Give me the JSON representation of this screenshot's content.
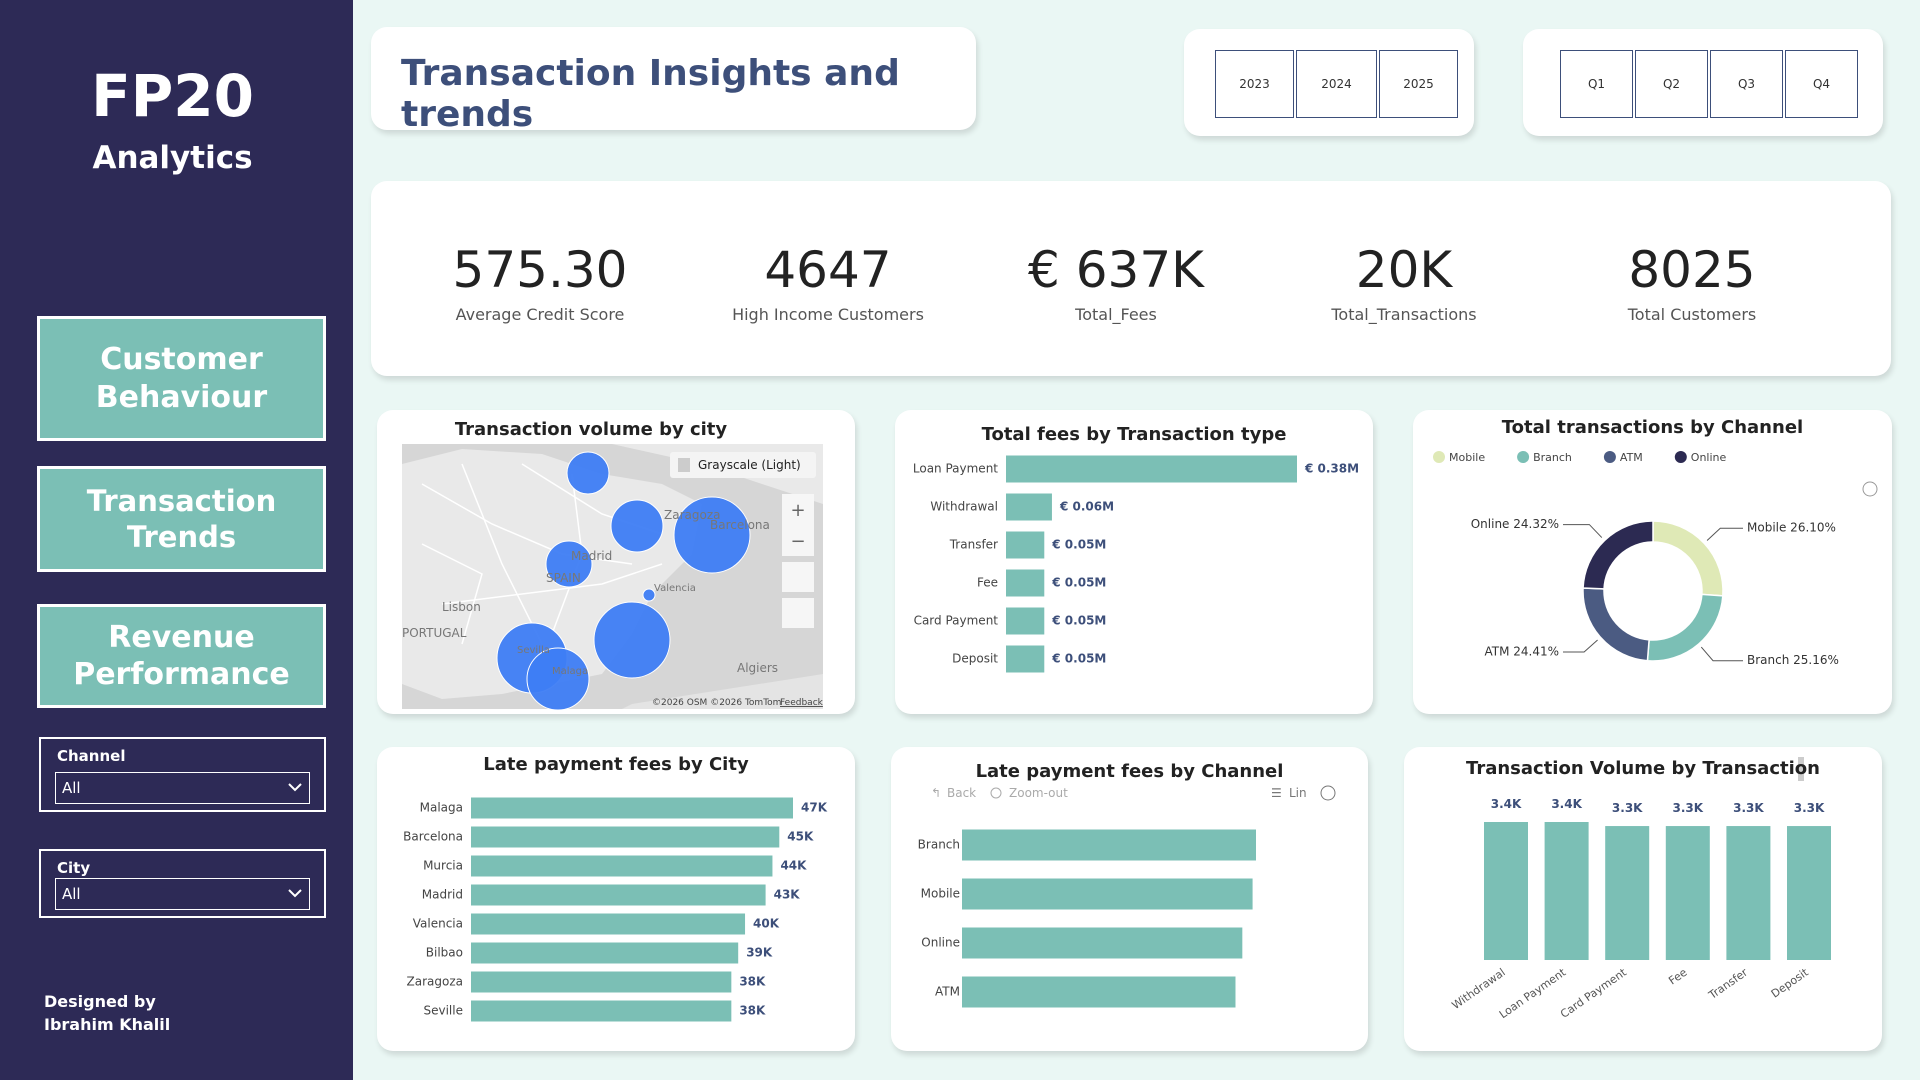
{
  "sidebar": {
    "logo": "FP20",
    "subtitle": "Analytics",
    "nav": [
      "Customer Behaviour",
      "Transaction Trends",
      "Revenue Performance"
    ],
    "filters": [
      {
        "label": "Channel",
        "value": "All"
      },
      {
        "label": "City",
        "value": "All"
      }
    ],
    "credit": [
      "Designed by",
      "Ibrahim Khalil"
    ]
  },
  "header": {
    "title": "Transaction Insights and trends",
    "years": [
      "2023",
      "2024",
      "2025"
    ],
    "quarters": [
      "Q1",
      "Q2",
      "Q3",
      "Q4"
    ]
  },
  "kpis": [
    {
      "value": "575.30",
      "label": "Average Credit Score"
    },
    {
      "value": "4647",
      "label": "High Income Customers"
    },
    {
      "value": "€ 637K",
      "label": "Total_Fees"
    },
    {
      "value": "20K",
      "label": "Total_Transactions"
    },
    {
      "value": "8025",
      "label": "Total Customers"
    }
  ],
  "map": {
    "title": "Transaction volume by city",
    "style": "Grayscale (Light)",
    "labels": [
      "Zaragoza",
      "Barcelona",
      "Madrid",
      "SPAIN",
      "Valencia",
      "Lisbon",
      "PORTUGAL",
      "Sevilla",
      "Malaga",
      "Algiers"
    ],
    "attribution": "©2026 OSM ©2026 TomTom",
    "feedback": "Feedback"
  },
  "toolbar": {
    "back": "Back",
    "zoom": "Zoom-out",
    "scale": "Lin"
  },
  "chart_data": [
    {
      "type": "hbar",
      "title": "Total fees by Transaction type",
      "categories": [
        "Loan Payment",
        "Withdrawal",
        "Transfer",
        "Fee",
        "Card Payment",
        "Deposit"
      ],
      "values": [
        0.38,
        0.06,
        0.05,
        0.05,
        0.05,
        0.05
      ],
      "value_labels": [
        "€ 0.38M",
        "€ 0.06M",
        "€ 0.05M",
        "€ 0.05M",
        "€ 0.05M",
        "€ 0.05M"
      ],
      "color": "#7bbfb5"
    },
    {
      "type": "donut",
      "title": "Total transactions by Channel",
      "categories": [
        "Mobile",
        "Branch",
        "ATM",
        "Online"
      ],
      "values": [
        26.1,
        25.16,
        24.41,
        24.32
      ],
      "value_labels": [
        "Mobile 26.10%",
        "Branch 25.16%",
        "ATM 24.41%",
        "Online 24.32%"
      ],
      "colors": [
        "#dfe9b6",
        "#7bbfb5",
        "#4b5b82",
        "#2c2a52"
      ]
    },
    {
      "type": "hbar",
      "title": "Late payment fees by City",
      "categories": [
        "Malaga",
        "Barcelona",
        "Murcia",
        "Madrid",
        "Valencia",
        "Bilbao",
        "Zaragoza",
        "Seville"
      ],
      "values": [
        47,
        45,
        44,
        43,
        40,
        39,
        38,
        38
      ],
      "value_labels": [
        "47K",
        "45K",
        "44K",
        "43K",
        "40K",
        "39K",
        "38K",
        "38K"
      ],
      "color": "#7bbfb5"
    },
    {
      "type": "hbar",
      "title": "Late payment fees by Channel",
      "categories": [
        "Branch",
        "Mobile",
        "Online",
        "ATM"
      ],
      "values": [
        86,
        85,
        82,
        80
      ],
      "color": "#7bbfb5"
    },
    {
      "type": "vbar",
      "title": "Transaction Volume by Transaction",
      "categories": [
        "Withdrawal",
        "Loan Payment",
        "Card Payment",
        "Fee",
        "Transfer",
        "Deposit"
      ],
      "values": [
        3.4,
        3.4,
        3.3,
        3.3,
        3.3,
        3.3
      ],
      "value_labels": [
        "3.4K",
        "3.4K",
        "3.3K",
        "3.3K",
        "3.3K",
        "3.3K"
      ],
      "color": "#7bbfb5"
    }
  ]
}
